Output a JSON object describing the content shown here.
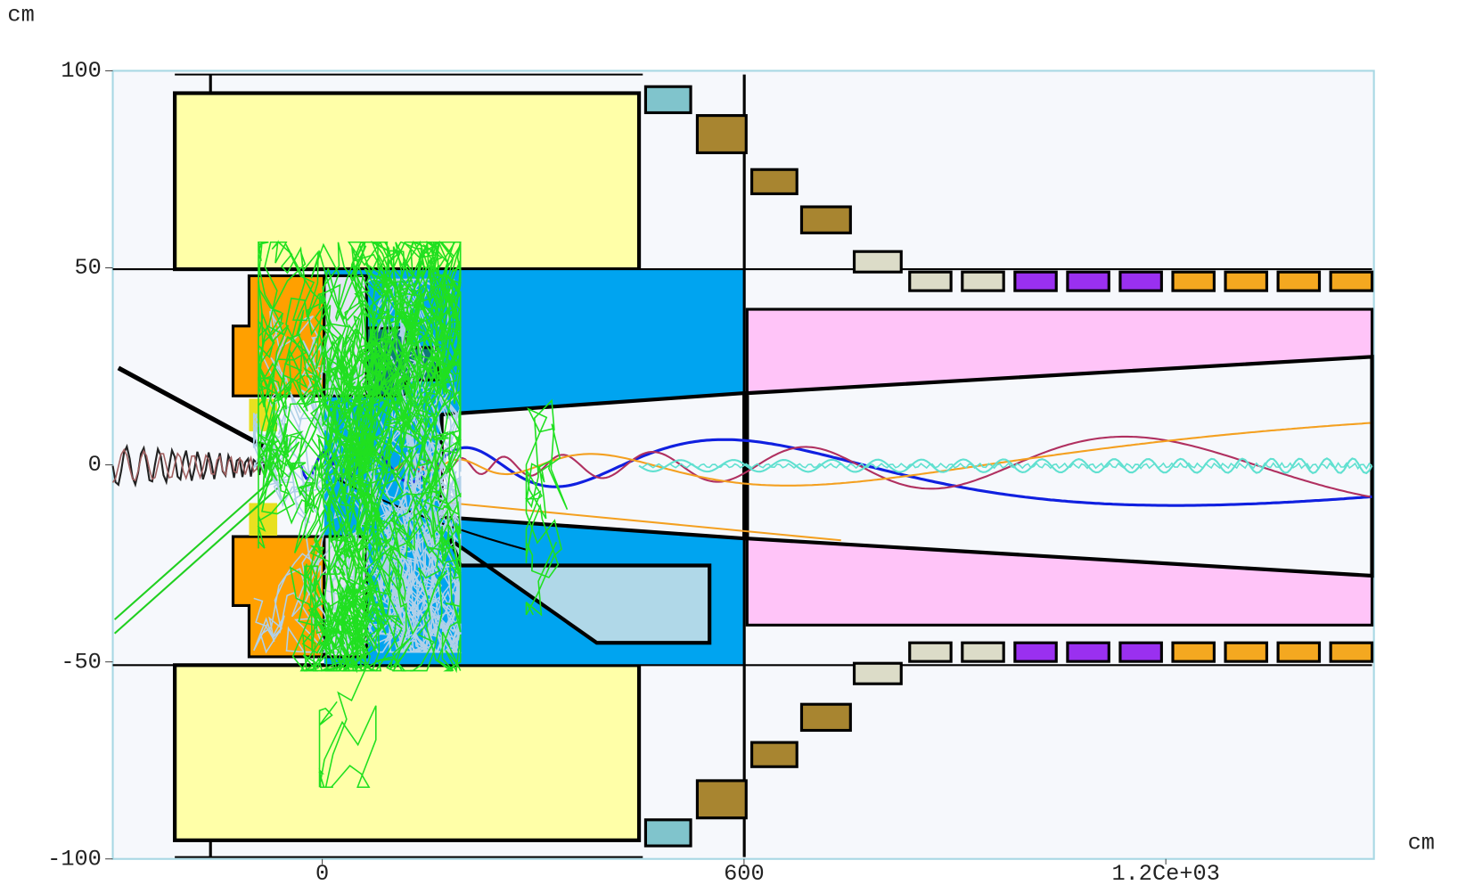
{
  "chart_data": {
    "type": "detector",
    "x_label": "cm",
    "y_label": "cm",
    "xlim": [
      -298,
      1496
    ],
    "ylim": [
      -100,
      100
    ],
    "xticks": [
      0,
      600,
      {
        "value": 1200,
        "label": "1.2Ce+03"
      }
    ],
    "yticks": [
      100,
      50,
      0,
      -50,
      -100
    ]
  }
}
